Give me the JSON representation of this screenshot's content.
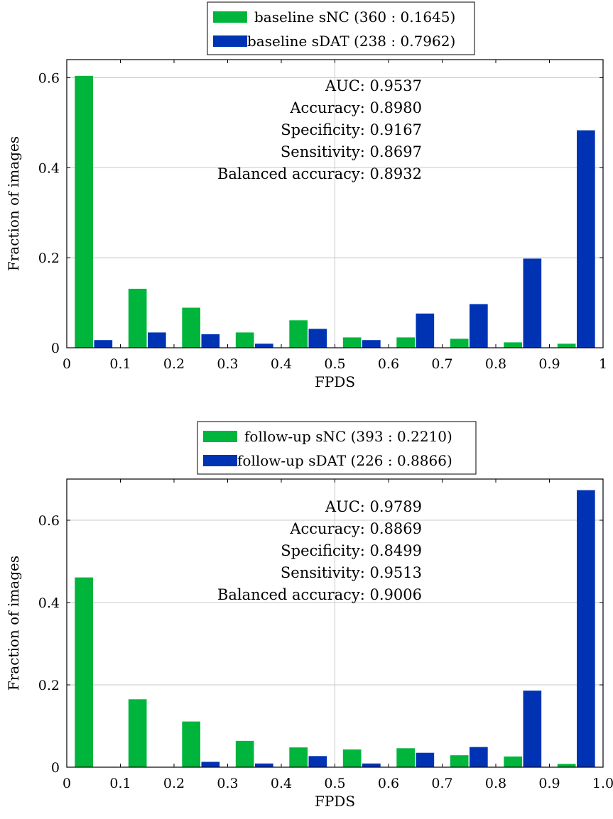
{
  "chart_data": [
    {
      "type": "bar",
      "xlabel": "FPDS",
      "ylabel": "Fraction of images",
      "xlim": [
        0,
        1
      ],
      "ylim": [
        0,
        0.64
      ],
      "x_ticks": [
        "0",
        "0.1",
        "0.2",
        "0.3",
        "0.4",
        "0.5",
        "0.6",
        "0.7",
        "0.8",
        "0.9",
        "1"
      ],
      "y_ticks": [
        {
          "value": 0,
          "label": "0"
        },
        {
          "value": 0.2,
          "label": "0.2"
        },
        {
          "value": 0.4,
          "label": "0.4"
        },
        {
          "value": 0.6,
          "label": "0.6"
        }
      ],
      "grid": true,
      "bin_starts": [
        0,
        0.1,
        0.2,
        0.3,
        0.4,
        0.5,
        0.6,
        0.7,
        0.8,
        0.9
      ],
      "series": [
        {
          "name": "baseline sNC (360 : 0.1645)",
          "color": "#00b53c",
          "values": [
            0.604,
            0.131,
            0.089,
            0.034,
            0.061,
            0.023,
            0.023,
            0.02,
            0.012,
            0.009
          ]
        },
        {
          "name": "baseline sDAT (238 : 0.7962)",
          "color": "#0033b4",
          "values": [
            0.017,
            0.034,
            0.03,
            0.009,
            0.042,
            0.017,
            0.076,
            0.097,
            0.198,
            0.483
          ]
        }
      ],
      "annotations": [
        "AUC: 0.9537",
        "Accuracy: 0.8980",
        "Specificity: 0.9167",
        "Sensitivity: 0.8697",
        "Balanced accuracy: 0.8932"
      ],
      "legend_position": "top-center-outside"
    },
    {
      "type": "bar",
      "xlabel": "FPDS",
      "ylabel": "Fraction of images",
      "xlim": [
        0,
        1
      ],
      "ylim": [
        0,
        0.7
      ],
      "x_ticks": [
        "0",
        "0.1",
        "0.2",
        "0.3",
        "0.4",
        "0.5",
        "0.6",
        "0.7",
        "0.8",
        "0.9",
        "1.0"
      ],
      "y_ticks": [
        {
          "value": 0,
          "label": "0"
        },
        {
          "value": 0.2,
          "label": "0.2"
        },
        {
          "value": 0.4,
          "label": "0.4"
        },
        {
          "value": 0.6,
          "label": "0.6"
        }
      ],
      "grid": true,
      "bin_starts": [
        0,
        0.1,
        0.2,
        0.3,
        0.4,
        0.5,
        0.6,
        0.7,
        0.8,
        0.9
      ],
      "series": [
        {
          "name": "follow-up sNC (393 : 0.2210)",
          "color": "#00b53c",
          "values": [
            0.461,
            0.165,
            0.111,
            0.064,
            0.048,
            0.043,
            0.046,
            0.029,
            0.026,
            0.008
          ]
        },
        {
          "name": "follow-up sDAT (226 : 0.8866)",
          "color": "#0033b4",
          "values": [
            0.0,
            0.0,
            0.013,
            0.009,
            0.027,
            0.009,
            0.035,
            0.049,
            0.186,
            0.673
          ]
        }
      ],
      "annotations": [
        "AUC: 0.9789",
        "Accuracy: 0.8869",
        "Specificity: 0.8499",
        "Sensitivity: 0.9513",
        "Balanced accuracy: 0.9006"
      ],
      "legend_position": "top-center-outside"
    }
  ]
}
